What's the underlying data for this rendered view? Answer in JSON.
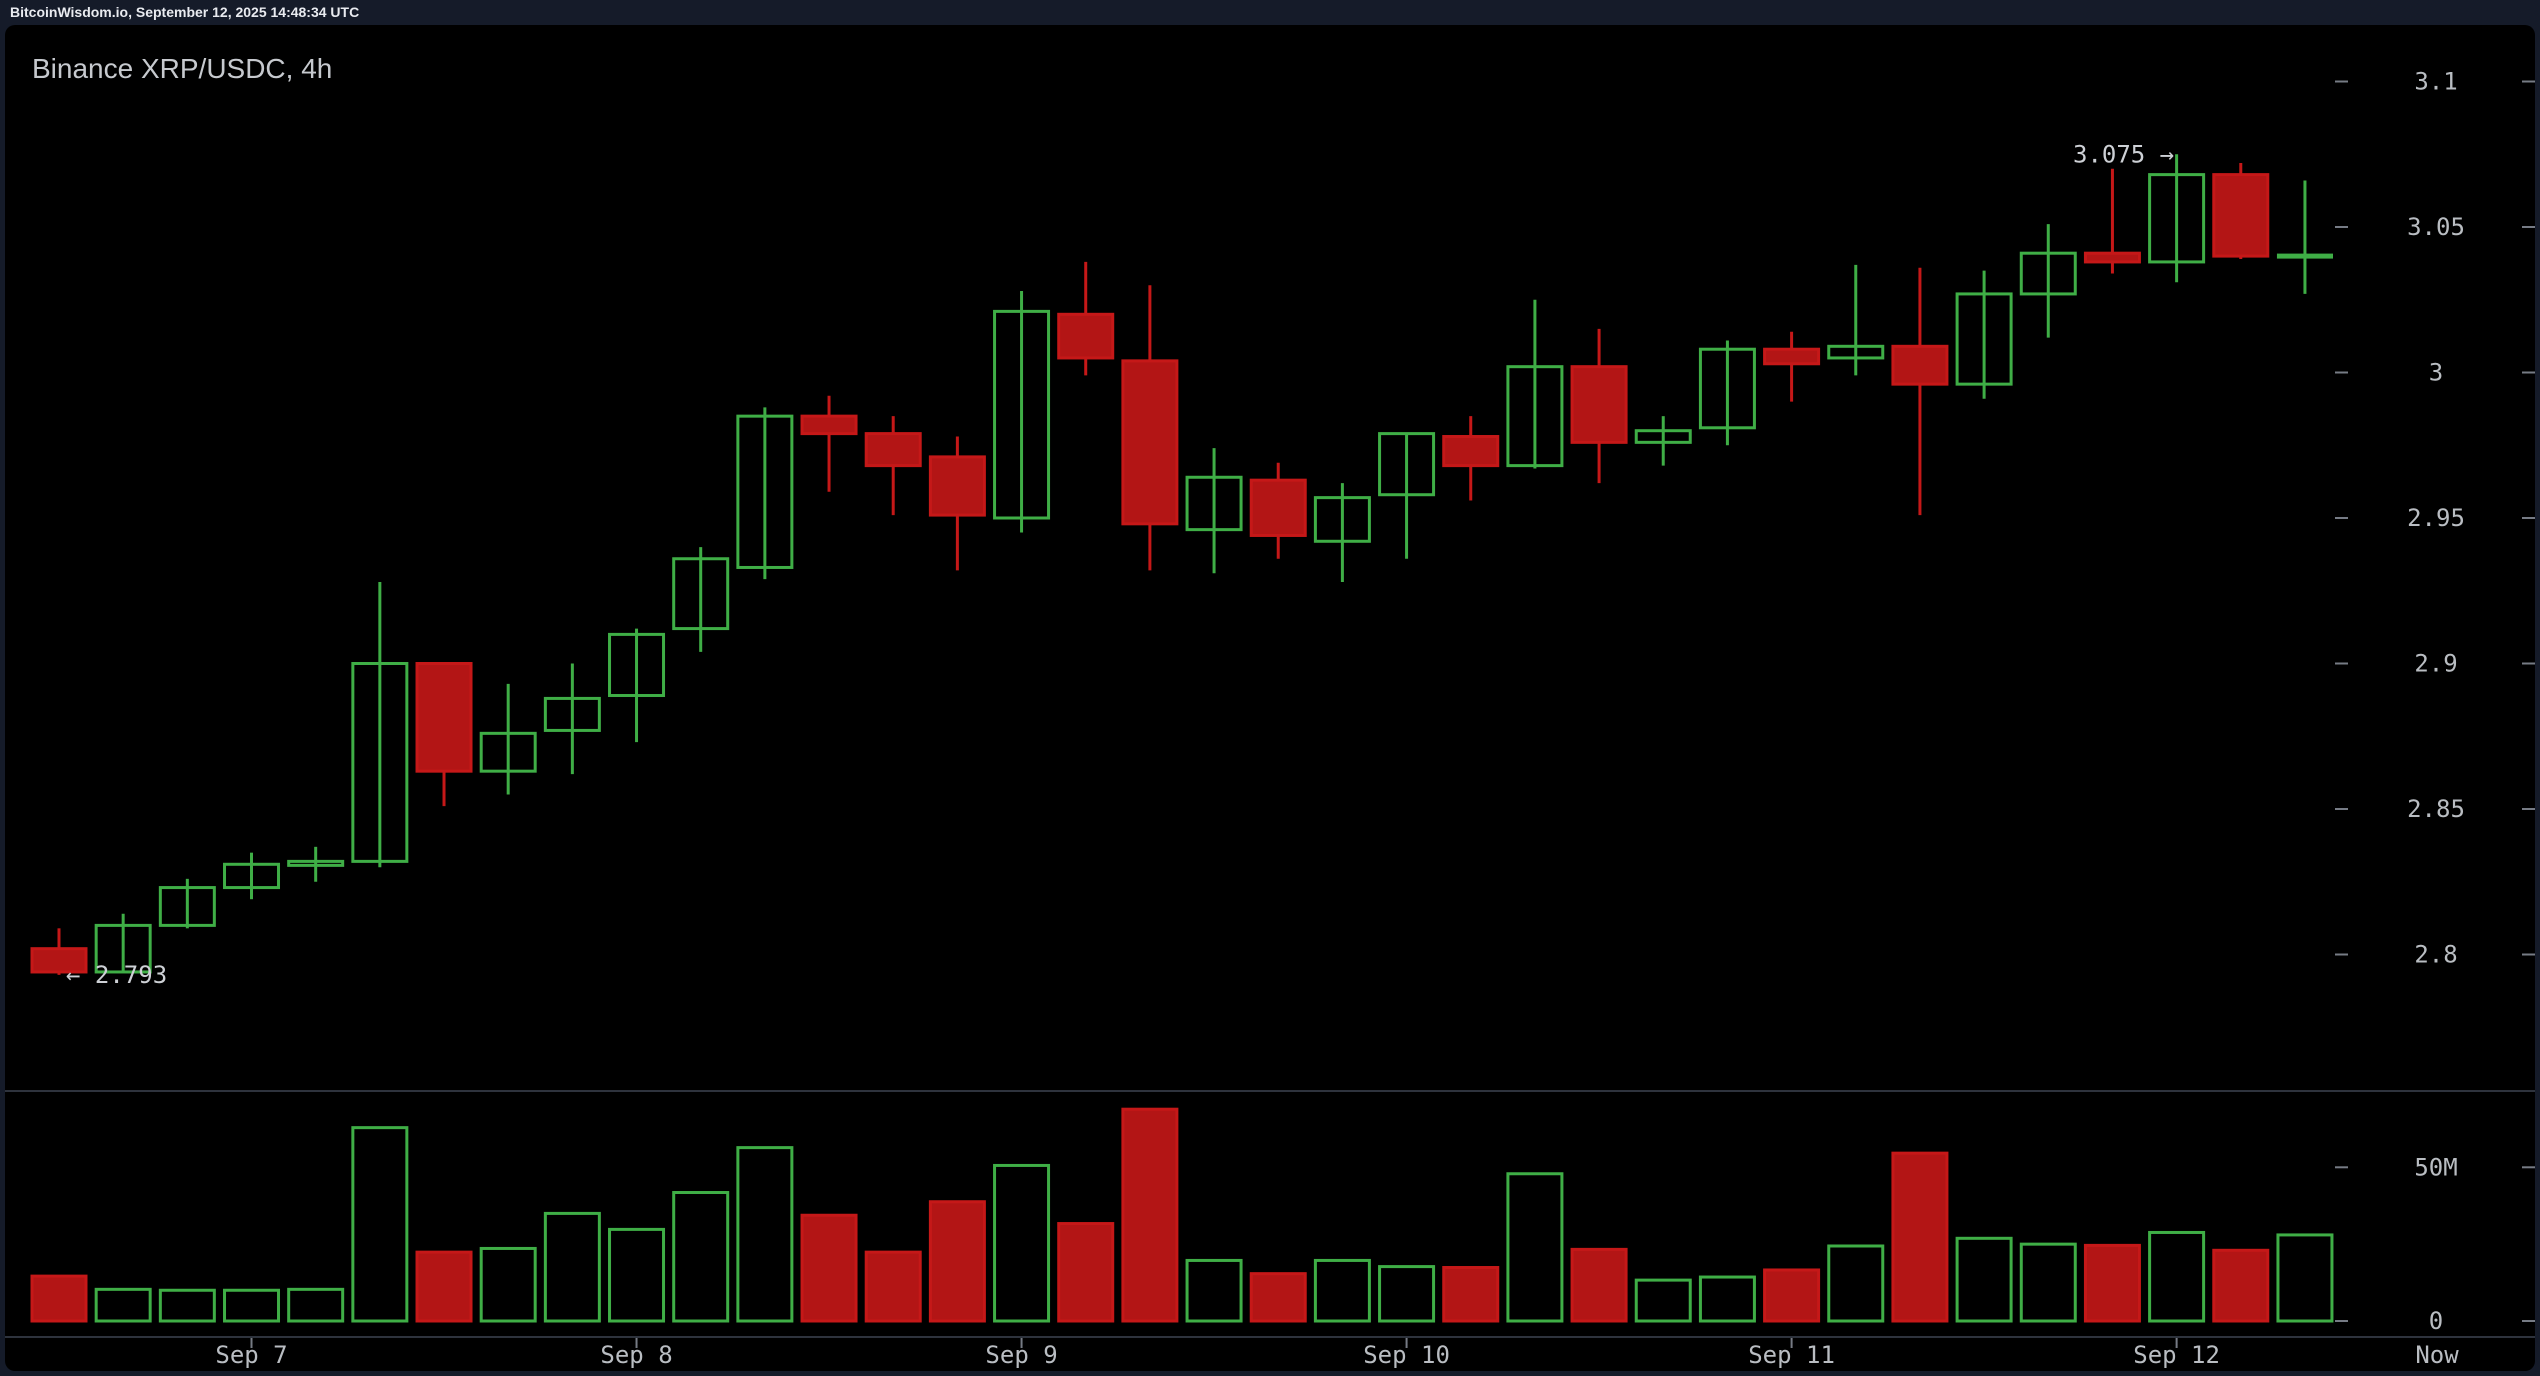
{
  "header": {
    "text": "BitcoinWisdom.io, September 12, 2025 14:48:34 UTC"
  },
  "chart": {
    "title": "Binance XRP/USDC, 4h"
  },
  "annotations": {
    "low_text": "← 2.793",
    "low_price": 2.793,
    "high_text": "3.075 →",
    "high_price": 3.075
  },
  "axis": {
    "price_labels": [
      {
        "text": "3.1",
        "price": 3.1
      },
      {
        "text": "3.05",
        "price": 3.05
      },
      {
        "text": "3",
        "price": 3.0
      },
      {
        "text": "2.95",
        "price": 2.95
      },
      {
        "text": "2.9",
        "price": 2.9
      },
      {
        "text": "2.85",
        "price": 2.85
      },
      {
        "text": "2.8",
        "price": 2.8
      }
    ],
    "volume_labels": [
      {
        "text": "50M",
        "value": 50
      },
      {
        "text": "0",
        "value": 0
      }
    ],
    "date_labels": [
      {
        "text": "Sep 7",
        "candle_index": 3
      },
      {
        "text": "Sep 8",
        "candle_index": 9
      },
      {
        "text": "Sep 9",
        "candle_index": 15
      },
      {
        "text": "Sep 10",
        "candle_index": 21
      },
      {
        "text": "Sep 11",
        "candle_index": 27
      },
      {
        "text": "Sep 12",
        "candle_index": 33
      }
    ],
    "now_label": "Now"
  },
  "colors": {
    "up": "#3fae46",
    "down": "#b31515",
    "down_stroke": "#c51818",
    "background": "#151b29",
    "panel": "#000000",
    "axis_text": "#b9bdc2",
    "separator": "#2e333d",
    "tick": "#767b85",
    "title": "#c6c9ce",
    "header": "#e9ebf0",
    "annotation": "#cdd0d5"
  },
  "chart_data": {
    "type": "candlestick+volume",
    "symbol": "Binance XRP/USDC",
    "interval": "4h",
    "title": "Binance XRP/USDC, 4h",
    "price_axis_ticks": [
      3.1,
      3.05,
      3.0,
      2.95,
      2.9,
      2.85,
      2.8
    ],
    "volume_axis_ticks_millions": [
      50,
      0
    ],
    "x_date_labels": [
      "Sep 7",
      "Sep 8",
      "Sep 9",
      "Sep 10",
      "Sep 11",
      "Sep 12"
    ],
    "current_price": 3.04,
    "session_low": 2.793,
    "session_high": 3.075,
    "volume_unit": "millions",
    "candles": [
      {
        "t": "Sep 6 12:00",
        "o": 2.802,
        "h": 2.809,
        "l": 2.793,
        "c": 2.794,
        "v": 14.6,
        "dir": "down"
      },
      {
        "t": "Sep 6 16:00",
        "o": 2.794,
        "h": 2.814,
        "l": 2.794,
        "c": 2.81,
        "v": 10.3,
        "dir": "up"
      },
      {
        "t": "Sep 6 20:00",
        "o": 2.81,
        "h": 2.826,
        "l": 2.809,
        "c": 2.823,
        "v": 10.0,
        "dir": "up"
      },
      {
        "t": "Sep 7 00:00",
        "o": 2.823,
        "h": 2.835,
        "l": 2.819,
        "c": 2.831,
        "v": 10.0,
        "dir": "up"
      },
      {
        "t": "Sep 7 04:00",
        "o": 2.831,
        "h": 2.837,
        "l": 2.825,
        "c": 2.832,
        "v": 10.3,
        "dir": "up"
      },
      {
        "t": "Sep 7 08:00",
        "o": 2.832,
        "h": 2.928,
        "l": 2.83,
        "c": 2.9,
        "v": 62.9,
        "dir": "up"
      },
      {
        "t": "Sep 7 12:00",
        "o": 2.9,
        "h": 2.9,
        "l": 2.851,
        "c": 2.863,
        "v": 22.4,
        "dir": "down"
      },
      {
        "t": "Sep 7 16:00",
        "o": 2.863,
        "h": 2.893,
        "l": 2.855,
        "c": 2.876,
        "v": 23.6,
        "dir": "up"
      },
      {
        "t": "Sep 7 20:00",
        "o": 2.877,
        "h": 2.9,
        "l": 2.862,
        "c": 2.888,
        "v": 35.0,
        "dir": "up"
      },
      {
        "t": "Sep 8 00:00",
        "o": 2.889,
        "h": 2.912,
        "l": 2.873,
        "c": 2.91,
        "v": 29.8,
        "dir": "up"
      },
      {
        "t": "Sep 8 04:00",
        "o": 2.912,
        "h": 2.94,
        "l": 2.904,
        "c": 2.936,
        "v": 41.8,
        "dir": "up"
      },
      {
        "t": "Sep 8 08:00",
        "o": 2.933,
        "h": 2.988,
        "l": 2.929,
        "c": 2.985,
        "v": 56.4,
        "dir": "up"
      },
      {
        "t": "Sep 8 12:00",
        "o": 2.985,
        "h": 2.992,
        "l": 2.959,
        "c": 2.979,
        "v": 34.4,
        "dir": "down"
      },
      {
        "t": "Sep 8 16:00",
        "o": 2.979,
        "h": 2.985,
        "l": 2.951,
        "c": 2.968,
        "v": 22.4,
        "dir": "down"
      },
      {
        "t": "Sep 8 20:00",
        "o": 2.971,
        "h": 2.978,
        "l": 2.932,
        "c": 2.951,
        "v": 38.8,
        "dir": "down"
      },
      {
        "t": "Sep 9 00:00",
        "o": 2.95,
        "h": 3.028,
        "l": 2.945,
        "c": 3.021,
        "v": 50.6,
        "dir": "up"
      },
      {
        "t": "Sep 9 04:00",
        "o": 3.02,
        "h": 3.038,
        "l": 2.999,
        "c": 3.005,
        "v": 31.7,
        "dir": "down"
      },
      {
        "t": "Sep 9 08:00",
        "o": 3.004,
        "h": 3.03,
        "l": 2.932,
        "c": 2.948,
        "v": 68.9,
        "dir": "down"
      },
      {
        "t": "Sep 9 12:00",
        "o": 2.946,
        "h": 2.974,
        "l": 2.931,
        "c": 2.964,
        "v": 19.7,
        "dir": "up"
      },
      {
        "t": "Sep 9 16:00",
        "o": 2.963,
        "h": 2.969,
        "l": 2.936,
        "c": 2.944,
        "v": 15.4,
        "dir": "down"
      },
      {
        "t": "Sep 9 20:00",
        "o": 2.942,
        "h": 2.962,
        "l": 2.928,
        "c": 2.957,
        "v": 19.7,
        "dir": "up"
      },
      {
        "t": "Sep 10 00:00",
        "o": 2.958,
        "h": 2.979,
        "l": 2.936,
        "c": 2.979,
        "v": 17.7,
        "dir": "up"
      },
      {
        "t": "Sep 10 04:00",
        "o": 2.978,
        "h": 2.985,
        "l": 2.956,
        "c": 2.968,
        "v": 17.4,
        "dir": "down"
      },
      {
        "t": "Sep 10 08:00",
        "o": 2.968,
        "h": 3.025,
        "l": 2.967,
        "c": 3.002,
        "v": 47.9,
        "dir": "up"
      },
      {
        "t": "Sep 10 12:00",
        "o": 3.002,
        "h": 3.015,
        "l": 2.962,
        "c": 2.976,
        "v": 23.3,
        "dir": "down"
      },
      {
        "t": "Sep 10 16:00",
        "o": 2.976,
        "h": 2.985,
        "l": 2.968,
        "c": 2.98,
        "v": 13.3,
        "dir": "up"
      },
      {
        "t": "Sep 10 20:00",
        "o": 2.981,
        "h": 3.011,
        "l": 2.975,
        "c": 3.008,
        "v": 14.3,
        "dir": "up"
      },
      {
        "t": "Sep 11 00:00",
        "o": 3.008,
        "h": 3.014,
        "l": 2.99,
        "c": 3.003,
        "v": 16.6,
        "dir": "down"
      },
      {
        "t": "Sep 11 04:00",
        "o": 3.005,
        "h": 3.037,
        "l": 2.999,
        "c": 3.009,
        "v": 24.4,
        "dir": "up"
      },
      {
        "t": "Sep 11 08:00",
        "o": 3.009,
        "h": 3.036,
        "l": 2.951,
        "c": 2.996,
        "v": 54.6,
        "dir": "down"
      },
      {
        "t": "Sep 11 12:00",
        "o": 2.996,
        "h": 3.035,
        "l": 2.991,
        "c": 3.027,
        "v": 26.9,
        "dir": "up"
      },
      {
        "t": "Sep 11 16:00",
        "o": 3.027,
        "h": 3.051,
        "l": 3.012,
        "c": 3.041,
        "v": 25.0,
        "dir": "up"
      },
      {
        "t": "Sep 11 20:00",
        "o": 3.041,
        "h": 3.07,
        "l": 3.034,
        "c": 3.038,
        "v": 24.6,
        "dir": "down"
      },
      {
        "t": "Sep 12 00:00",
        "o": 3.038,
        "h": 3.075,
        "l": 3.031,
        "c": 3.068,
        "v": 28.8,
        "dir": "up"
      },
      {
        "t": "Sep 12 04:00",
        "o": 3.068,
        "h": 3.072,
        "l": 3.039,
        "c": 3.04,
        "v": 23.0,
        "dir": "down"
      },
      {
        "t": "Sep 12 08:00",
        "o": 3.04,
        "h": 3.066,
        "l": 3.027,
        "c": 3.04,
        "v": 28.0,
        "dir": "up",
        "forming": true
      }
    ]
  }
}
